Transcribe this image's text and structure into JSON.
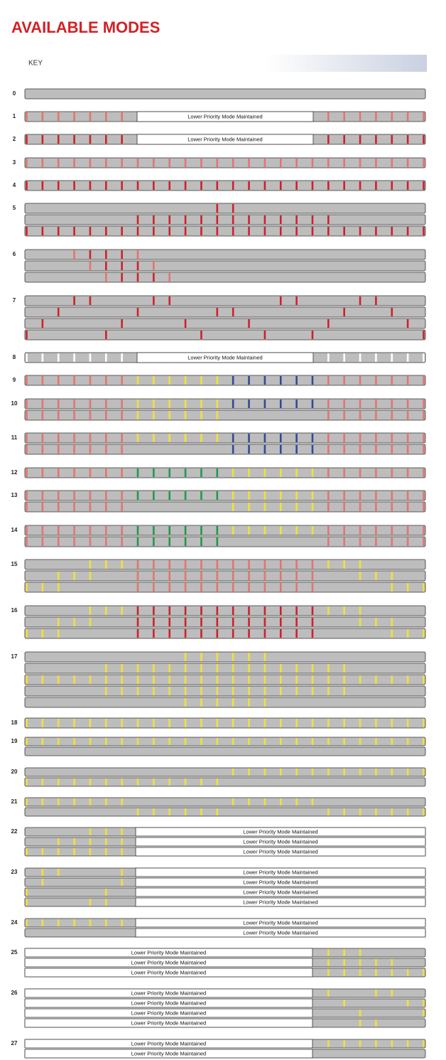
{
  "title": "AVAILABLE MODES",
  "key": "KEY",
  "modes": [
    {
      "label": "0"
    },
    {
      "label": "1",
      "notes": [
        "Lower Priority Mode Maintained"
      ]
    },
    {
      "label": "2",
      "notes": [
        "Lower Priority Mode Maintained"
      ]
    },
    {
      "label": "3"
    },
    {
      "label": "4"
    },
    {
      "label": "5"
    },
    {
      "label": "6"
    },
    {
      "label": "7"
    },
    {
      "label": "8",
      "notes": [
        "Lower Priority Mode Maintained"
      ]
    },
    {
      "label": "9"
    },
    {
      "label": "10"
    },
    {
      "label": "11"
    },
    {
      "label": "12"
    },
    {
      "label": "13"
    },
    {
      "label": "14"
    },
    {
      "label": "15"
    },
    {
      "label": "16"
    },
    {
      "label": "17"
    },
    {
      "label": "18"
    },
    {
      "label": "19"
    },
    {
      "label": "20"
    },
    {
      "label": "21"
    },
    {
      "label": "22",
      "notes": [
        "Lower Priority Mode Maintained",
        "Lower Priority Mode Maintained",
        "Lower Priority Mode Maintained"
      ]
    },
    {
      "label": "23",
      "notes": [
        "Lower Priority Mode Maintained",
        "Lower Priority Mode Maintained",
        "Lower Priority Mode Maintained",
        "Lower Priority Mode Maintained"
      ]
    },
    {
      "label": "24",
      "notes": [
        "Lower Priority Mode Maintained",
        "Lower Priority Mode Maintained"
      ]
    },
    {
      "label": "25",
      "notes": [
        "Lower Priority Mode Maintained",
        "Lower Priority Mode Maintained",
        "Lower Priority Mode Maintained"
      ]
    },
    {
      "label": "26",
      "notes": [
        "Lower Priority Mode Maintained",
        "Lower Priority Mode Maintained",
        "Lower Priority Mode Maintained",
        "Lower Priority Mode Maintained"
      ]
    },
    {
      "label": "27",
      "notes": [
        "Lower Priority Mode Maintained",
        "Lower Priority Mode Maintained"
      ]
    }
  ]
}
